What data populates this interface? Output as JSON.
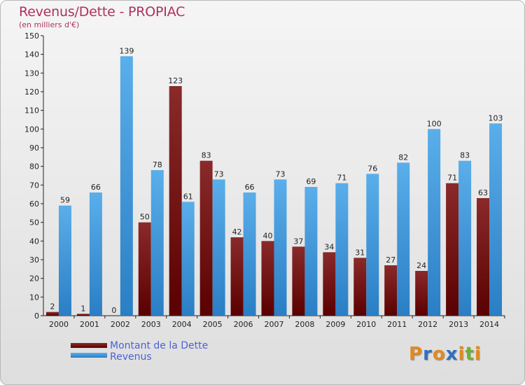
{
  "header": {
    "title": "Revenus/Dette - PROPIAC",
    "subtitle": "(en milliers d'€)"
  },
  "legend": {
    "debt_label": "Montant de la Dette",
    "revenue_label": "Revenus"
  },
  "logo": {
    "letters": [
      "P",
      "r",
      "o",
      "x",
      "i",
      "t",
      "i"
    ],
    "colors": [
      "#e08a20",
      "#3070c0",
      "#e08a20",
      "#3070c0",
      "#e08a20",
      "#70b030",
      "#e08a20"
    ]
  },
  "chart_data": {
    "type": "bar",
    "title": "Revenus/Dette - PROPIAC",
    "subtitle": "(en milliers d'€)",
    "categories": [
      "2000",
      "2001",
      "2002",
      "2003",
      "2004",
      "2005",
      "2006",
      "2007",
      "2008",
      "2009",
      "2010",
      "2011",
      "2012",
      "2013",
      "2014"
    ],
    "series": [
      {
        "name": "Montant de la Dette",
        "color": "#7a1010",
        "values": [
          2,
          1,
          0,
          50,
          123,
          83,
          42,
          40,
          37,
          34,
          31,
          27,
          24,
          71,
          63
        ]
      },
      {
        "name": "Revenus",
        "color": "#4a9ee0",
        "values": [
          59,
          66,
          139,
          78,
          61,
          73,
          66,
          73,
          69,
          71,
          76,
          82,
          100,
          83,
          103
        ]
      }
    ],
    "ylim": [
      0,
      150
    ],
    "ytick_step": 10,
    "grid": false,
    "legend_position": "bottom-left"
  }
}
